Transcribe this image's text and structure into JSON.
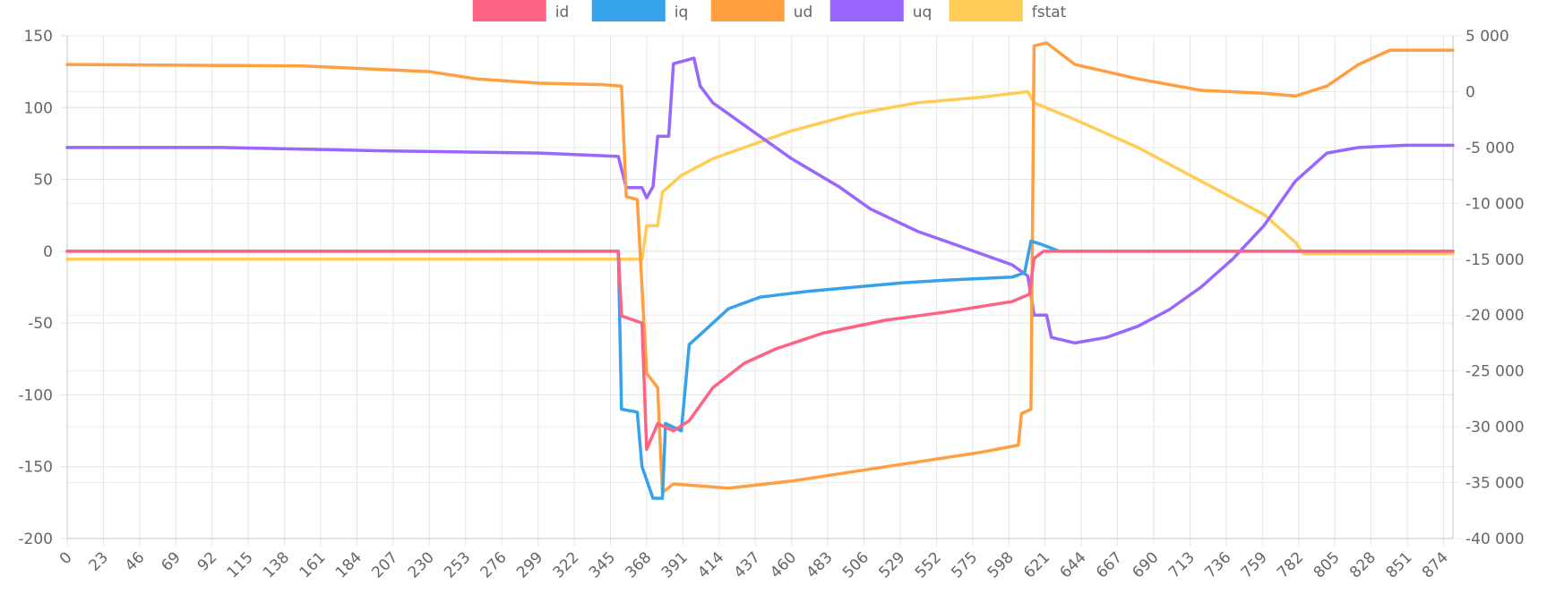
{
  "chart_data": {
    "type": "line",
    "legend_position": "top",
    "grid": true,
    "x_tick_labels": [
      "0",
      "23",
      "46",
      "69",
      "92",
      "115",
      "138",
      "161",
      "184",
      "207",
      "230",
      "253",
      "276",
      "299",
      "322",
      "345",
      "368",
      "391",
      "414",
      "437",
      "460",
      "483",
      "506",
      "529",
      "552",
      "575",
      "598",
      "621",
      "644",
      "667",
      "690",
      "713",
      "736",
      "759",
      "782",
      "805",
      "828",
      "851",
      "874"
    ],
    "x_range": [
      0,
      880
    ],
    "y_left": {
      "ticks": [
        150,
        100,
        50,
        0,
        -50,
        -100,
        -150,
        -200
      ],
      "tick_labels": [
        "150",
        "100",
        "50",
        "0",
        "-50",
        "-100",
        "-150",
        "-200"
      ],
      "range": [
        -200,
        150
      ]
    },
    "y_right": {
      "ticks": [
        5000,
        0,
        -5000,
        -10000,
        -15000,
        -20000,
        -25000,
        -30000,
        -35000,
        -40000
      ],
      "tick_labels": [
        "5 000",
        "0",
        "-5 000",
        "-10 000",
        "-15 000",
        "-20 000",
        "-25 000",
        "-30 000",
        "-35 000",
        "-40 000"
      ],
      "range": [
        -40000,
        5000
      ]
    },
    "series": [
      {
        "name": "id",
        "color": "#ff6384",
        "axis": "left",
        "points": [
          [
            0,
            0
          ],
          [
            350,
            0
          ],
          [
            352,
            -45
          ],
          [
            365,
            -50
          ],
          [
            368,
            -138
          ],
          [
            375,
            -120
          ],
          [
            385,
            -125
          ],
          [
            395,
            -118
          ],
          [
            410,
            -95
          ],
          [
            430,
            -78
          ],
          [
            450,
            -68
          ],
          [
            480,
            -57
          ],
          [
            520,
            -48
          ],
          [
            560,
            -42
          ],
          [
            600,
            -35
          ],
          [
            611,
            -30
          ],
          [
            614,
            -5
          ],
          [
            620,
            0
          ],
          [
            880,
            0
          ]
        ]
      },
      {
        "name": "iq",
        "color": "#36a2eb",
        "axis": "left",
        "points": [
          [
            0,
            0
          ],
          [
            350,
            0
          ],
          [
            352,
            -110
          ],
          [
            362,
            -112
          ],
          [
            365,
            -150
          ],
          [
            372,
            -172
          ],
          [
            378,
            -172
          ],
          [
            380,
            -120
          ],
          [
            390,
            -125
          ],
          [
            395,
            -65
          ],
          [
            405,
            -55
          ],
          [
            420,
            -40
          ],
          [
            440,
            -32
          ],
          [
            470,
            -28
          ],
          [
            500,
            -25
          ],
          [
            530,
            -22
          ],
          [
            560,
            -20
          ],
          [
            600,
            -18
          ],
          [
            608,
            -15
          ],
          [
            612,
            7
          ],
          [
            618,
            5
          ],
          [
            630,
            0
          ],
          [
            880,
            0
          ]
        ]
      },
      {
        "name": "ud",
        "color": "#ff9f40",
        "axis": "left",
        "points": [
          [
            0,
            130
          ],
          [
            150,
            129
          ],
          [
            230,
            125
          ],
          [
            260,
            120
          ],
          [
            300,
            117
          ],
          [
            340,
            116
          ],
          [
            352,
            115
          ],
          [
            355,
            38
          ],
          [
            362,
            36
          ],
          [
            368,
            -85
          ],
          [
            375,
            -95
          ],
          [
            378,
            -168
          ],
          [
            385,
            -162
          ],
          [
            420,
            -165
          ],
          [
            460,
            -160
          ],
          [
            520,
            -150
          ],
          [
            580,
            -140
          ],
          [
            604,
            -135
          ],
          [
            606,
            -113
          ],
          [
            612,
            -110
          ],
          [
            614,
            143
          ],
          [
            622,
            145
          ],
          [
            640,
            130
          ],
          [
            680,
            120
          ],
          [
            720,
            112
          ],
          [
            760,
            110
          ],
          [
            780,
            108
          ],
          [
            800,
            115
          ],
          [
            820,
            130
          ],
          [
            840,
            140
          ],
          [
            880,
            140
          ]
        ]
      },
      {
        "name": "uq",
        "color": "#9966ff",
        "axis": "right",
        "points": [
          [
            0,
            -5000
          ],
          [
            100,
            -5000
          ],
          [
            200,
            -5300
          ],
          [
            300,
            -5500
          ],
          [
            350,
            -5800
          ],
          [
            355,
            -8600
          ],
          [
            365,
            -8600
          ],
          [
            368,
            -9500
          ],
          [
            372,
            -8500
          ],
          [
            375,
            -4000
          ],
          [
            382,
            -4000
          ],
          [
            385,
            2500
          ],
          [
            398,
            3000
          ],
          [
            402,
            500
          ],
          [
            410,
            -1000
          ],
          [
            430,
            -3000
          ],
          [
            460,
            -6000
          ],
          [
            490,
            -8500
          ],
          [
            510,
            -10500
          ],
          [
            540,
            -12500
          ],
          [
            560,
            -13500
          ],
          [
            580,
            -14500
          ],
          [
            600,
            -15500
          ],
          [
            610,
            -16500
          ],
          [
            614,
            -20000
          ],
          [
            622,
            -20000
          ],
          [
            625,
            -22000
          ],
          [
            640,
            -22500
          ],
          [
            660,
            -22000
          ],
          [
            680,
            -21000
          ],
          [
            700,
            -19500
          ],
          [
            720,
            -17500
          ],
          [
            740,
            -15000
          ],
          [
            760,
            -12000
          ],
          [
            780,
            -8000
          ],
          [
            800,
            -5500
          ],
          [
            820,
            -5000
          ],
          [
            850,
            -4800
          ],
          [
            880,
            -4800
          ]
        ]
      },
      {
        "name": "fstat",
        "color": "#ffcd56",
        "axis": "right",
        "points": [
          [
            0,
            -15000
          ],
          [
            365,
            -15000
          ],
          [
            368,
            -12000
          ],
          [
            375,
            -12000
          ],
          [
            378,
            -9000
          ],
          [
            390,
            -7500
          ],
          [
            410,
            -6000
          ],
          [
            430,
            -5000
          ],
          [
            460,
            -3500
          ],
          [
            500,
            -2000
          ],
          [
            540,
            -1000
          ],
          [
            580,
            -500
          ],
          [
            610,
            0
          ],
          [
            614,
            -1000
          ],
          [
            640,
            -2500
          ],
          [
            680,
            -5000
          ],
          [
            720,
            -8000
          ],
          [
            760,
            -11000
          ],
          [
            780,
            -13500
          ],
          [
            785,
            -14500
          ],
          [
            880,
            -14500
          ]
        ]
      }
    ]
  }
}
